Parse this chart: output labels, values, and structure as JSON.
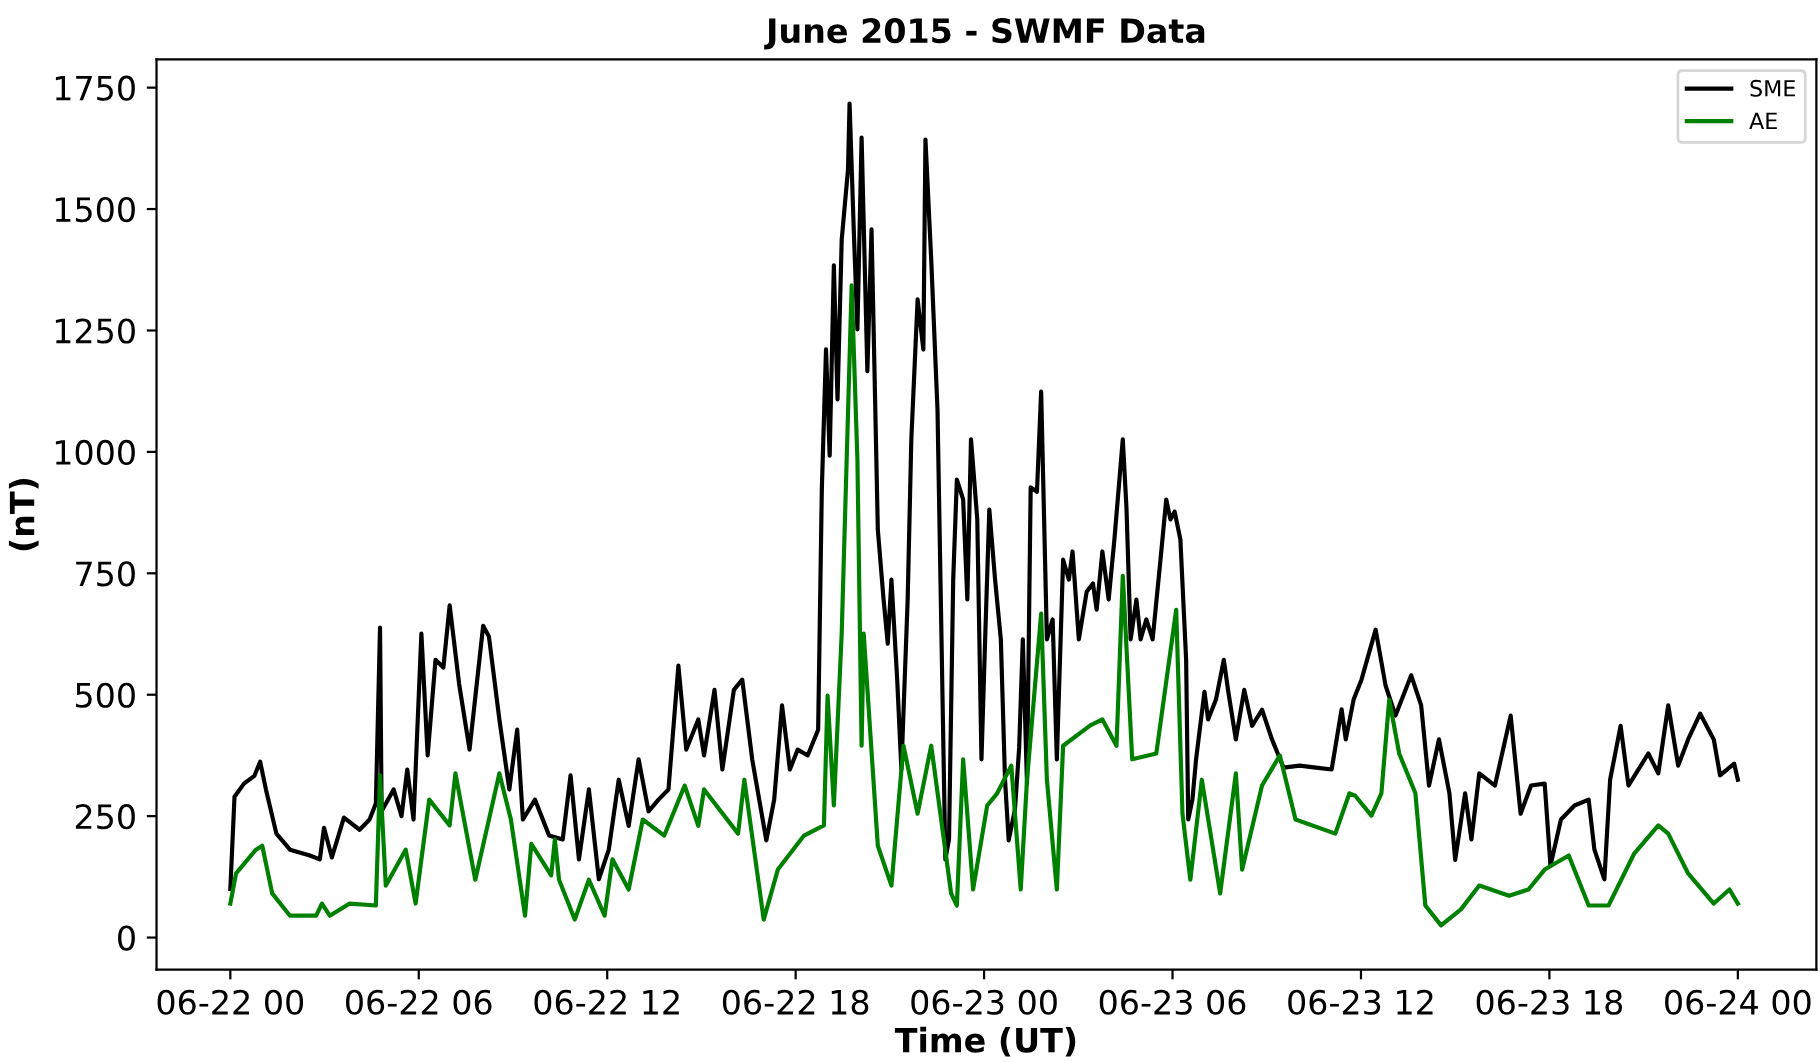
{
  "chart_data": {
    "type": "line",
    "title": "June 2015 - SWMF Data",
    "xlabel": "Time (UT)",
    "ylabel": "(nT)",
    "xlim": [
      "2015-06-21T21:39",
      "2015-06-24T02:30"
    ],
    "ylim": [
      -66,
      1808
    ],
    "xticks": [
      {
        "value": "2015-06-22T00:00",
        "label": "06-22 00"
      },
      {
        "value": "2015-06-22T06:00",
        "label": "06-22 06"
      },
      {
        "value": "2015-06-22T12:00",
        "label": "06-22 12"
      },
      {
        "value": "2015-06-22T18:00",
        "label": "06-22 18"
      },
      {
        "value": "2015-06-23T00:00",
        "label": "06-23 00"
      },
      {
        "value": "2015-06-23T06:00",
        "label": "06-23 06"
      },
      {
        "value": "2015-06-23T12:00",
        "label": "06-23 12"
      },
      {
        "value": "2015-06-23T18:00",
        "label": "06-23 18"
      },
      {
        "value": "2015-06-24T00:00",
        "label": "06-24 00"
      }
    ],
    "yticks": [
      0,
      250,
      500,
      750,
      1000,
      1250,
      1500,
      1750
    ],
    "grid": false,
    "legend": "top right",
    "marker": "none",
    "line_style": "solid",
    "series": [
      {
        "name": "SME",
        "color": "#000000",
        "x": [
          "2015-06-22T00:00",
          "2015-06-22T00:08",
          "2015-06-22T00:26",
          "2015-06-22T00:46",
          "2015-06-22T00:57",
          "2015-06-22T01:08",
          "2015-06-22T01:28",
          "2015-06-22T01:54",
          "2015-06-22T02:32",
          "2015-06-22T02:51",
          "2015-06-22T02:59",
          "2015-06-22T03:14",
          "2015-06-22T03:37",
          "2015-06-22T04:07",
          "2015-06-22T04:26",
          "2015-06-22T04:38",
          "2015-06-22T04:46",
          "2015-06-22T04:49",
          "2015-06-22T05:12",
          "2015-06-22T05:27",
          "2015-06-22T05:38",
          "2015-06-22T05:50",
          "2015-06-22T06:05",
          "2015-06-22T06:17",
          "2015-06-22T06:32",
          "2015-06-22T06:47",
          "2015-06-22T06:59",
          "2015-06-22T07:17",
          "2015-06-22T07:37",
          "2015-06-22T08:03",
          "2015-06-22T08:14",
          "2015-06-22T08:34",
          "2015-06-22T08:53",
          "2015-06-22T09:08",
          "2015-06-22T09:19",
          "2015-06-22T09:42",
          "2015-06-22T10:09",
          "2015-06-22T10:35",
          "2015-06-22T10:50",
          "2015-06-22T11:06",
          "2015-06-22T11:25",
          "2015-06-22T11:44",
          "2015-06-22T12:03",
          "2015-06-22T12:22",
          "2015-06-22T12:41",
          "2015-06-22T13:00",
          "2015-06-22T13:19",
          "2015-06-22T13:38",
          "2015-06-22T13:57",
          "2015-06-22T14:16",
          "2015-06-22T14:31",
          "2015-06-22T14:54",
          "2015-06-22T15:05",
          "2015-06-22T15:25",
          "2015-06-22T15:40",
          "2015-06-22T16:02",
          "2015-06-22T16:18",
          "2015-06-22T16:37",
          "2015-06-22T17:04",
          "2015-06-22T17:19",
          "2015-06-22T17:34",
          "2015-06-22T17:49",
          "2015-06-22T18:04",
          "2015-06-22T18:23",
          "2015-06-22T18:43",
          "2015-06-22T18:50",
          "2015-06-22T18:58",
          "2015-06-22T19:05",
          "2015-06-22T19:13",
          "2015-06-22T19:20",
          "2015-06-22T19:28",
          "2015-06-22T19:40",
          "2015-06-22T19:43",
          "2015-06-22T19:51",
          "2015-06-22T19:58",
          "2015-06-22T20:06",
          "2015-06-22T20:17",
          "2015-06-22T20:25",
          "2015-06-22T20:37",
          "2015-06-22T20:48",
          "2015-06-22T20:56",
          "2015-06-22T21:03",
          "2015-06-22T21:14",
          "2015-06-22T21:22",
          "2015-06-22T21:34",
          "2015-06-22T21:41",
          "2015-06-22T21:53",
          "2015-06-22T22:04",
          "2015-06-22T22:08",
          "2015-06-22T22:19",
          "2015-06-22T22:31",
          "2015-06-22T22:46",
          "2015-06-22T22:53",
          "2015-06-22T23:01",
          "2015-06-22T23:08",
          "2015-06-22T23:20",
          "2015-06-22T23:28",
          "2015-06-22T23:35",
          "2015-06-22T23:47",
          "2015-06-22T23:55",
          "2015-06-23T00:02",
          "2015-06-23T00:10",
          "2015-06-23T00:21",
          "2015-06-23T00:32",
          "2015-06-23T00:40",
          "2015-06-23T00:47",
          "2015-06-23T00:59",
          "2015-06-23T01:07",
          "2015-06-23T01:14",
          "2015-06-23T01:22",
          "2015-06-23T01:29",
          "2015-06-23T01:41",
          "2015-06-23T01:49",
          "2015-06-23T02:00",
          "2015-06-23T02:11",
          "2015-06-23T02:19",
          "2015-06-23T02:31",
          "2015-06-23T02:42",
          "2015-06-23T02:49",
          "2015-06-23T03:01",
          "2015-06-23T03:16",
          "2015-06-23T03:28",
          "2015-06-23T03:35",
          "2015-06-23T03:46",
          "2015-06-23T03:58",
          "2015-06-23T04:09",
          "2015-06-23T04:25",
          "2015-06-23T04:32",
          "2015-06-23T04:40",
          "2015-06-23T04:51",
          "2015-06-23T04:59",
          "2015-06-23T05:10",
          "2015-06-23T05:22",
          "2015-06-23T05:37",
          "2015-06-23T05:48",
          "2015-06-23T05:56",
          "2015-06-23T06:04",
          "2015-06-23T06:15",
          "2015-06-23T06:26",
          "2015-06-23T06:30",
          "2015-06-23T06:38",
          "2015-06-23T06:45",
          "2015-06-23T07:01",
          "2015-06-23T07:08",
          "2015-06-23T07:23",
          "2015-06-23T07:38",
          "2015-06-23T07:46",
          "2015-06-23T08:01",
          "2015-06-23T08:17",
          "2015-06-23T08:32",
          "2015-06-23T08:51",
          "2015-06-23T09:10",
          "2015-06-23T09:32",
          "2015-06-23T10:03",
          "2015-06-23T10:34",
          "2015-06-23T11:04",
          "2015-06-23T11:23",
          "2015-06-23T11:31",
          "2015-06-23T11:46",
          "2015-06-23T12:01",
          "2015-06-23T12:28",
          "2015-06-23T12:47",
          "2015-06-23T13:06",
          "2015-06-23T13:36",
          "2015-06-23T13:55",
          "2015-06-23T14:10",
          "2015-06-23T14:29",
          "2015-06-23T14:49",
          "2015-06-23T15:00",
          "2015-06-23T15:19",
          "2015-06-23T15:31",
          "2015-06-23T15:46",
          "2015-06-23T16:16",
          "2015-06-23T16:46",
          "2015-06-23T17:05",
          "2015-06-23T17:25",
          "2015-06-23T17:51",
          "2015-06-23T18:02",
          "2015-06-23T18:22",
          "2015-06-23T18:48",
          "2015-06-23T19:15",
          "2015-06-23T19:26",
          "2015-06-23T19:45",
          "2015-06-23T19:56",
          "2015-06-23T20:16",
          "2015-06-23T20:31",
          "2015-06-23T21:09",
          "2015-06-23T21:28",
          "2015-06-23T21:47",
          "2015-06-23T22:06",
          "2015-06-23T22:25",
          "2015-06-23T22:48",
          "2015-06-23T23:14",
          "2015-06-23T23:26",
          "2015-06-23T23:53",
          "2015-06-24T00:00"
        ],
        "values": [
          100,
          290,
          317,
          333,
          362,
          305,
          214,
          181,
          169,
          161,
          226,
          165,
          247,
          222,
          243,
          276,
          638,
          260,
          305,
          250,
          346,
          243,
          626,
          375,
          572,
          556,
          684,
          523,
          387,
          642,
          620,
          449,
          305,
          428,
          243,
          284,
          210,
          202,
          334,
          161,
          305,
          120,
          181,
          325,
          230,
          367,
          260,
          284,
          305,
          560,
          387,
          449,
          375,
          510,
          346,
          510,
          531,
          367,
          200,
          284,
          478,
          346,
          387,
          375,
          428,
          922,
          1211,
          992,
          1384,
          1108,
          1437,
          1581,
          1717,
          1458,
          1252,
          1647,
          1166,
          1458,
          840,
          696,
          605,
          737,
          531,
          346,
          696,
          1026,
          1314,
          1211,
          1643,
          1396,
          1087,
          161,
          202,
          737,
          943,
          902,
          696,
          1026,
          861,
          367,
          614,
          881,
          737,
          614,
          325,
          200,
          264,
          391,
          614,
          317,
          927,
          918,
          1124,
          614,
          655,
          367,
          778,
          737,
          795,
          614,
          712,
          729,
          675,
          795,
          696,
          820,
          1026,
          885,
          614,
          696,
          614,
          655,
          614,
          778,
          902,
          861,
          877,
          820,
          572,
          243,
          284,
          367,
          506,
          449,
          490,
          572,
          510,
          408,
          510,
          436,
          469,
          408,
          350,
          354,
          350,
          346,
          470,
          408,
          490,
          531,
          634,
          519,
          457,
          540,
          478,
          313,
          408,
          297,
          160,
          297,
          202,
          338,
          313,
          457,
          255,
          313,
          317,
          148,
          243,
          272,
          284,
          181,
          120,
          325,
          436,
          313,
          379,
          338,
          478,
          354,
          408,
          461,
          408,
          334,
          358,
          325
        ]
      },
      {
        "name": "AE",
        "color": "#008000",
        "x": [
          "2015-06-22T00:00",
          "2015-06-22T00:11",
          "2015-06-22T00:49",
          "2015-06-22T01:01",
          "2015-06-22T01:20",
          "2015-06-22T01:54",
          "2015-06-22T02:44",
          "2015-06-22T02:55",
          "2015-06-22T03:10",
          "2015-06-22T03:48",
          "2015-06-22T04:38",
          "2015-06-22T04:46",
          "2015-06-22T04:57",
          "2015-06-22T05:35",
          "2015-06-22T05:54",
          "2015-06-22T06:20",
          "2015-06-22T06:59",
          "2015-06-22T07:10",
          "2015-06-22T07:48",
          "2015-06-22T08:34",
          "2015-06-22T08:56",
          "2015-06-22T09:23",
          "2015-06-22T09:35",
          "2015-06-22T10:13",
          "2015-06-22T10:20",
          "2015-06-22T10:28",
          "2015-06-22T10:58",
          "2015-06-22T11:25",
          "2015-06-22T11:55",
          "2015-06-22T12:10",
          "2015-06-22T12:41",
          "2015-06-22T13:08",
          "2015-06-22T13:49",
          "2015-06-22T14:28",
          "2015-06-22T14:54",
          "2015-06-22T15:05",
          "2015-06-22T16:10",
          "2015-06-22T16:22",
          "2015-06-22T16:59",
          "2015-06-22T17:26",
          "2015-06-22T18:16",
          "2015-06-22T18:54",
          "2015-06-22T19:01",
          "2015-06-22T19:13",
          "2015-06-22T19:28",
          "2015-06-22T19:47",
          "2015-06-22T19:58",
          "2015-06-22T20:06",
          "2015-06-22T20:10",
          "2015-06-22T20:37",
          "2015-06-22T21:03",
          "2015-06-22T21:26",
          "2015-06-22T21:53",
          "2015-06-22T22:19",
          "2015-06-22T22:57",
          "2015-06-22T23:08",
          "2015-06-22T23:20",
          "2015-06-22T23:39",
          "2015-06-23T00:06",
          "2015-06-23T00:25",
          "2015-06-23T00:52",
          "2015-06-23T01:10",
          "2015-06-23T01:22",
          "2015-06-23T01:49",
          "2015-06-23T02:00",
          "2015-06-23T02:19",
          "2015-06-23T02:31",
          "2015-06-23T03:23",
          "2015-06-23T03:46",
          "2015-06-23T04:13",
          "2015-06-23T04:25",
          "2015-06-23T04:43",
          "2015-06-23T05:29",
          "2015-06-23T06:07",
          "2015-06-23T06:19",
          "2015-06-23T06:34",
          "2015-06-23T06:56",
          "2015-06-23T07:31",
          "2015-06-23T08:01",
          "2015-06-23T08:13",
          "2015-06-23T08:51",
          "2015-06-23T09:25",
          "2015-06-23T09:55",
          "2015-06-23T11:11",
          "2015-06-23T11:38",
          "2015-06-23T11:49",
          "2015-06-23T12:20",
          "2015-06-23T12:39",
          "2015-06-23T12:54",
          "2015-06-23T13:13",
          "2015-06-23T13:44",
          "2015-06-23T14:03",
          "2015-06-23T14:33",
          "2015-06-23T15:11",
          "2015-06-23T15:46",
          "2015-06-23T16:43",
          "2015-06-23T17:20",
          "2015-06-23T17:51",
          "2015-06-23T18:37",
          "2015-06-23T19:15",
          "2015-06-23T19:53",
          "2015-06-23T20:42",
          "2015-06-23T21:28",
          "2015-06-23T21:47",
          "2015-06-23T22:25",
          "2015-06-23T23:14",
          "2015-06-23T23:44",
          "2015-06-24T00:00"
        ],
        "values": [
          70,
          132,
          181,
          189,
          91,
          45,
          45,
          70,
          45,
          70,
          66,
          334,
          107,
          181,
          70,
          284,
          231,
          338,
          119,
          338,
          243,
          45,
          193,
          128,
          202,
          119,
          37,
          119,
          45,
          161,
          99,
          243,
          210,
          313,
          230,
          305,
          214,
          325,
          37,
          140,
          210,
          231,
          498,
          272,
          626,
          1343,
          984,
          395,
          626,
          189,
          107,
          395,
          255,
          395,
          91,
          66,
          367,
          99,
          272,
          297,
          354,
          99,
          325,
          667,
          325,
          99,
          395,
          437,
          449,
          395,
          745,
          367,
          379,
          675,
          255,
          119,
          325,
          91,
          338,
          140,
          313,
          375,
          243,
          214,
          297,
          292,
          251,
          297,
          490,
          379,
          297,
          66,
          25,
          58,
          107,
          86,
          99,
          140,
          169,
          66,
          66,
          173,
          231,
          214,
          132,
          70,
          99,
          70
        ]
      }
    ]
  }
}
